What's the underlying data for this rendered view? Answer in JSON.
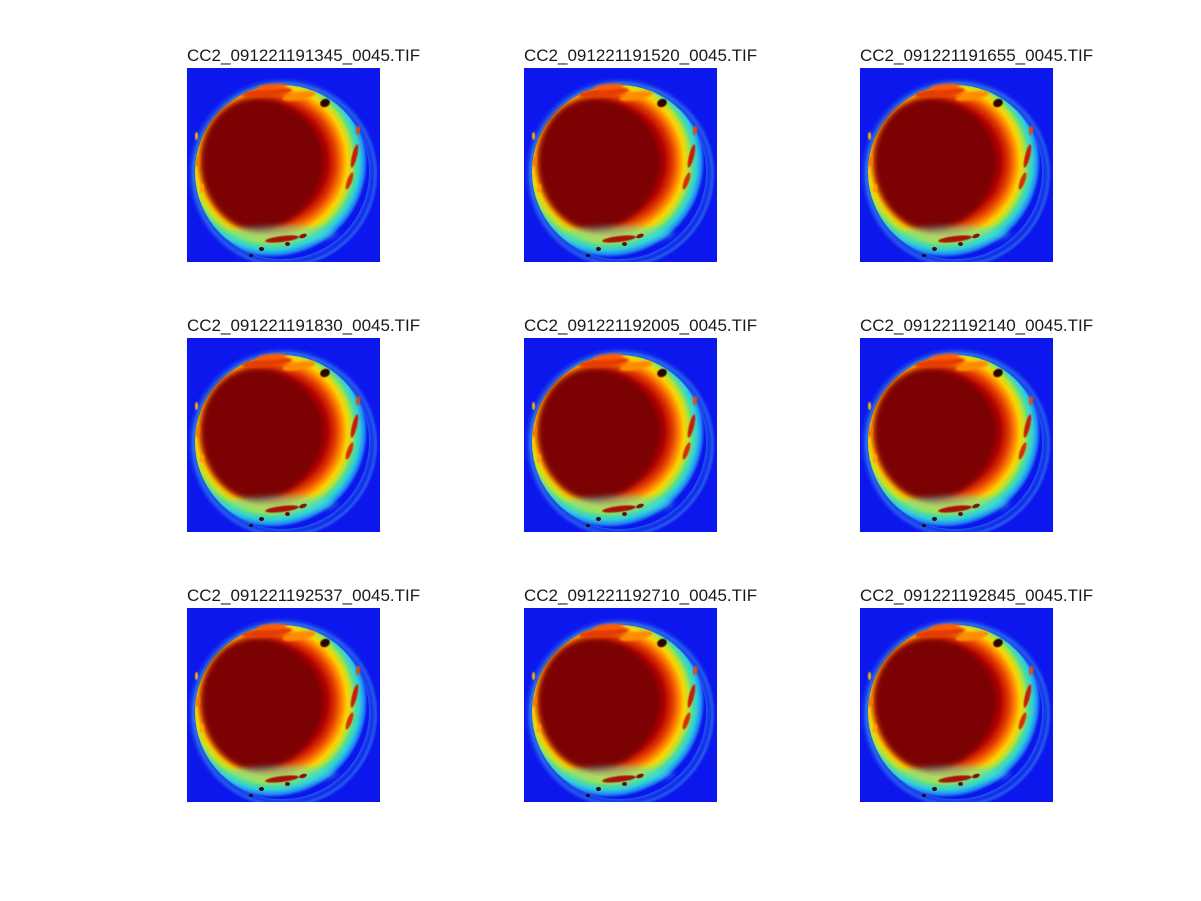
{
  "figure": {
    "background": "#ffffff",
    "title_color": "#1a1a1a"
  },
  "chart_data": {
    "type": "heatmap",
    "layout": "3x3 image montage",
    "colormap": "jet",
    "grid": {
      "rows": 3,
      "cols": 3,
      "grid_lines": false,
      "axes_visible": false,
      "legend": "none"
    },
    "colors": {
      "page_background": "#ffffff",
      "image_background": "#0c17ee",
      "core_dark_red": "#7c0103",
      "rim_cyan": "#3ed2e0",
      "rim_yellow": "#ffd200",
      "title_text": "#1a1a1a"
    },
    "subplots": [
      {
        "title": "CC2_091221191345_0045.TIF"
      },
      {
        "title": "CC2_091221191520_0045.TIF"
      },
      {
        "title": "CC2_091221191655_0045.TIF"
      },
      {
        "title": "CC2_091221191830_0045.TIF"
      },
      {
        "title": "CC2_091221192005_0045.TIF"
      },
      {
        "title": "CC2_091221192140_0045.TIF"
      },
      {
        "title": "CC2_091221192537_0045.TIF"
      },
      {
        "title": "CC2_091221192710_0045.TIF"
      },
      {
        "title": "CC2_091221192845_0045.TIF"
      }
    ],
    "description": "Nine near-identical false-color (jet colormap) camera frames of a circular combustion/plasma cross-section: saturated dark-red core offset toward the upper-left, surrounded by a red-orange-yellow-green-cyan annular gradient on a uniform blue background, with small dark and red speckle artifacts along the rim and a dark spot near the top-right of each disk."
  }
}
